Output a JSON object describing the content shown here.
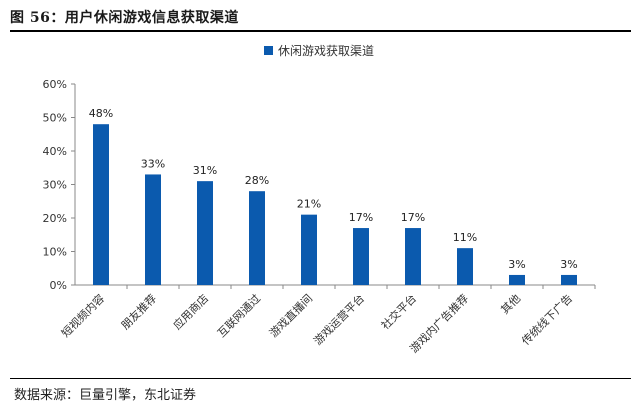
{
  "header": {
    "title": "图 56：用户休闲游戏信息获取渠道"
  },
  "footer": {
    "source": "数据来源：巨量引擎，东北证券"
  },
  "colors": {
    "bar": "#0B5AAE",
    "axis": "#888888"
  },
  "chart_data": {
    "type": "bar",
    "title": "",
    "xlabel": "",
    "ylabel": "",
    "ylim": [
      0,
      60
    ],
    "y_ticks": [
      "0%",
      "10%",
      "20%",
      "30%",
      "40%",
      "50%",
      "60%"
    ],
    "grid": false,
    "legend_position": "top-center",
    "series": [
      {
        "name": "休闲游戏获取渠道",
        "values": [
          48,
          33,
          31,
          28,
          21,
          17,
          17,
          11,
          3,
          3
        ],
        "labels": [
          "48%",
          "33%",
          "31%",
          "28%",
          "21%",
          "17%",
          "17%",
          "11%",
          "3%",
          "3%"
        ]
      }
    ],
    "categories": [
      "短视频内容",
      "朋友推荐",
      "应用商店",
      "互联网通过",
      "游戏直播间",
      "游戏运营平台",
      "社交平台",
      "游戏内广告推荐",
      "其他",
      "传统线下广告"
    ]
  }
}
